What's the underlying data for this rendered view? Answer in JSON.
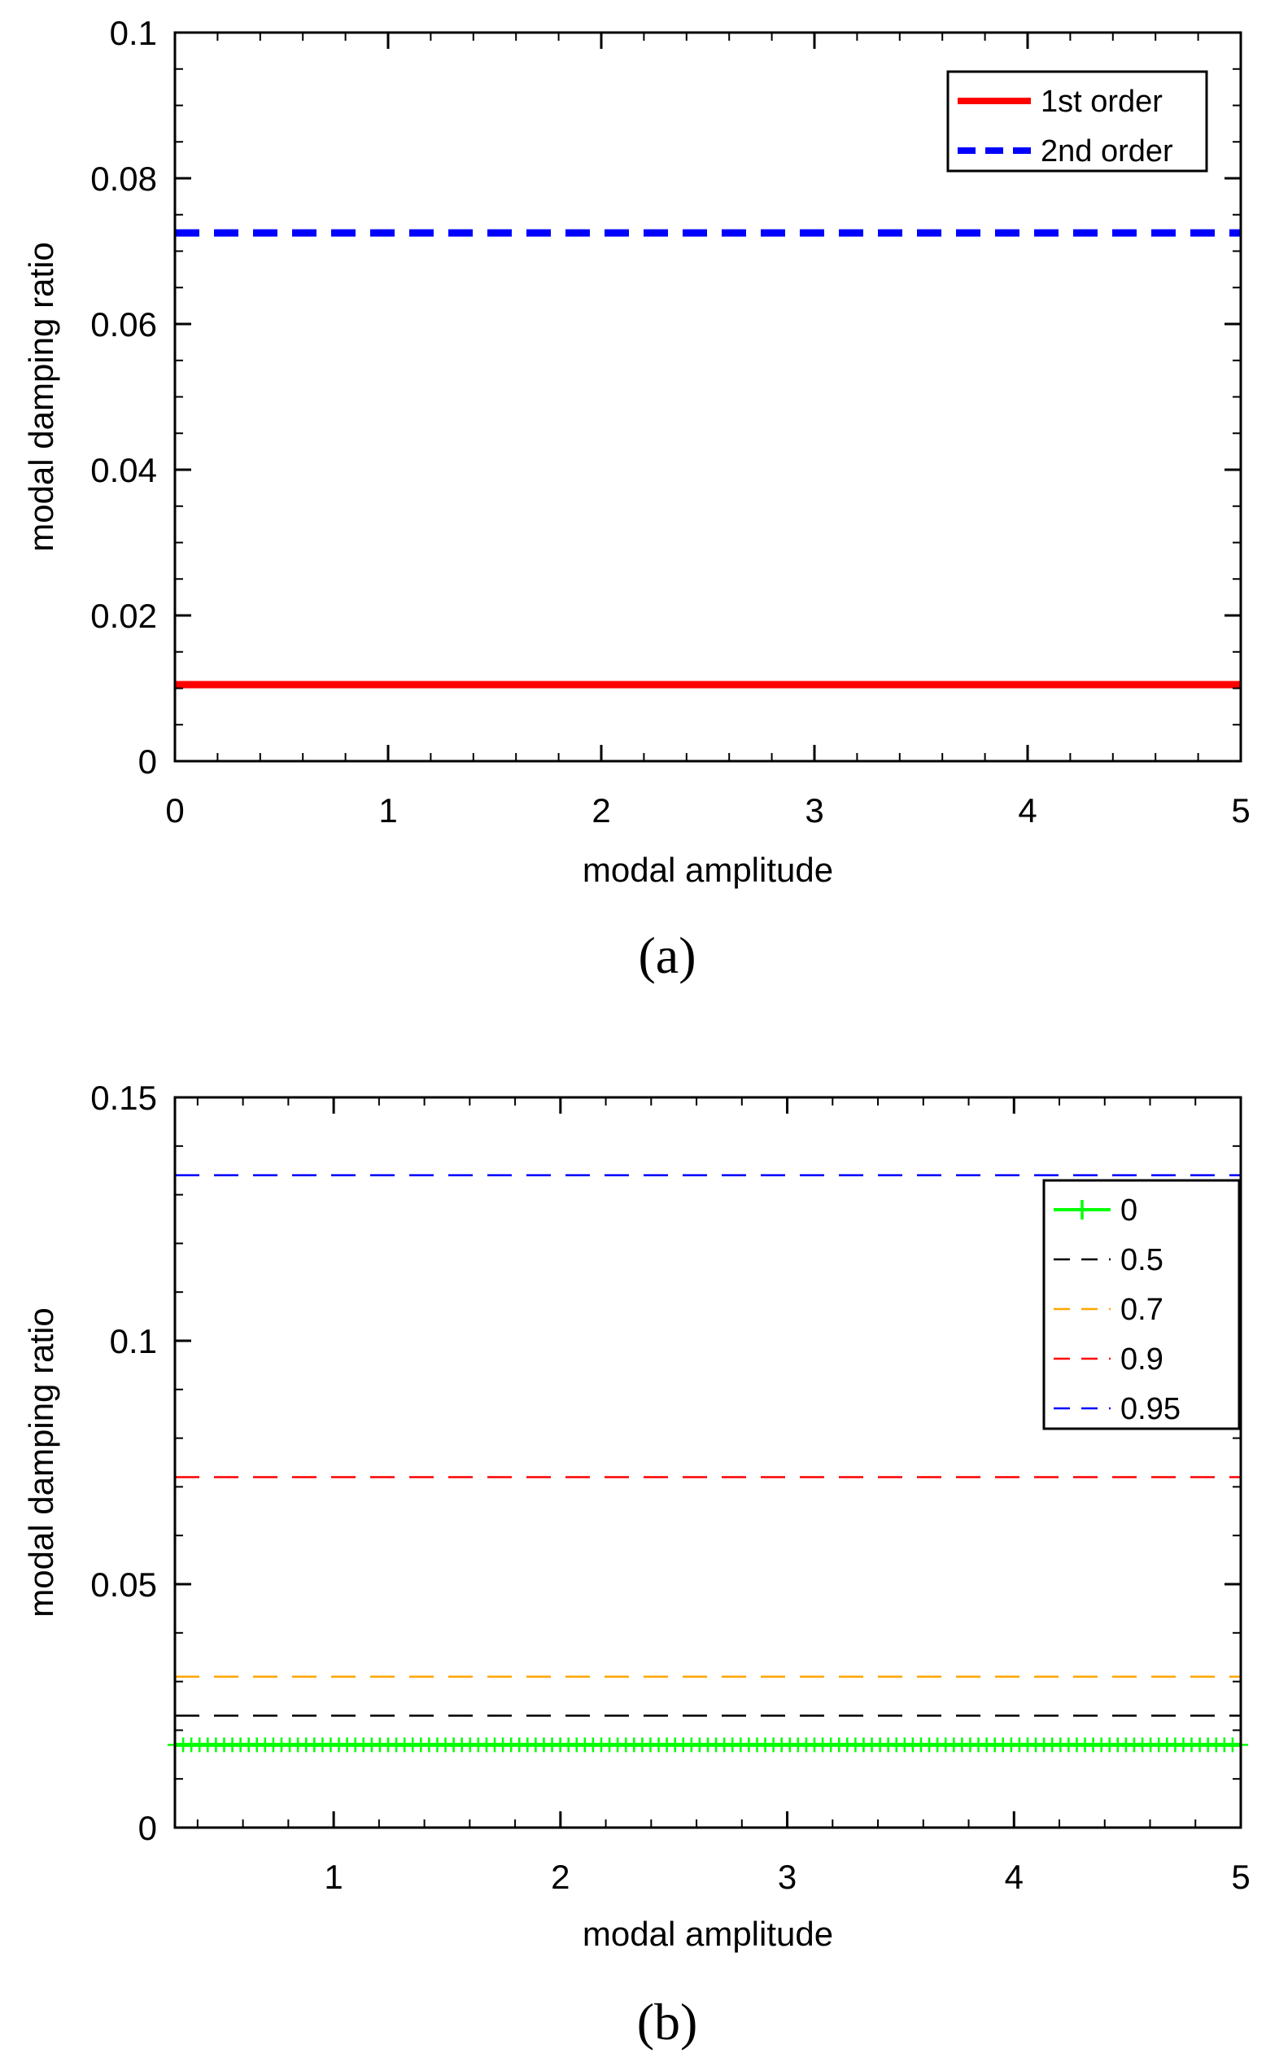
{
  "chart_data": [
    {
      "type": "line",
      "panel_label": "a",
      "panel_label_display": "(a)",
      "title": "",
      "xlabel": "modal amplitude",
      "ylabel": "modal damping ratio",
      "xlim": [
        0,
        5
      ],
      "ylim": [
        0,
        0.1
      ],
      "xticks": [
        0,
        1,
        2,
        3,
        4,
        5
      ],
      "xtick_labels": [
        "0",
        "1",
        "2",
        "3",
        "4",
        "5"
      ],
      "yticks": [
        0,
        0.02,
        0.04,
        0.06,
        0.08,
        0.1
      ],
      "ytick_labels": [
        "0",
        "0.02",
        "0.04",
        "0.06",
        "0.08",
        "0.1"
      ],
      "grid": false,
      "legend_position": "top-right",
      "series": [
        {
          "name": "1st order",
          "label": "1st order",
          "color": "#ff0000",
          "style": "solid",
          "x": [
            0,
            5
          ],
          "values": [
            0.0105,
            0.0105
          ]
        },
        {
          "name": "2nd order",
          "label": "2nd order",
          "color": "#0000ff",
          "style": "dashed",
          "x": [
            0,
            5
          ],
          "values": [
            0.0725,
            0.0725
          ]
        }
      ]
    },
    {
      "type": "line",
      "panel_label": "b",
      "panel_label_display": "(b)",
      "title": "",
      "xlabel": "modal amplitude",
      "ylabel": "modal damping ratio",
      "xlim": [
        0.3,
        5
      ],
      "ylim": [
        0,
        0.15
      ],
      "xticks": [
        1,
        2,
        3,
        4,
        5
      ],
      "xtick_labels": [
        "1",
        "2",
        "3",
        "4",
        "5"
      ],
      "yticks": [
        0,
        0.05,
        0.1,
        0.15
      ],
      "ytick_labels": [
        "0",
        "0.05",
        "0.1",
        "0.15"
      ],
      "grid": false,
      "legend_position": "top-right",
      "series": [
        {
          "name": "0",
          "label": "0",
          "color": "#00ff00",
          "style": "solid-plus-markers",
          "x": [
            0.3,
            5
          ],
          "values": [
            0.017,
            0.017
          ]
        },
        {
          "name": "0.5",
          "label": "0.5",
          "color": "#000000",
          "style": "dashed",
          "x": [
            0.3,
            5
          ],
          "values": [
            0.023,
            0.023
          ]
        },
        {
          "name": "0.7",
          "label": "0.7",
          "color": "#ffa500",
          "style": "dashed",
          "x": [
            0.3,
            5
          ],
          "values": [
            0.031,
            0.031
          ]
        },
        {
          "name": "0.9",
          "label": "0.9",
          "color": "#ff0000",
          "style": "dashed",
          "x": [
            0.3,
            5
          ],
          "values": [
            0.072,
            0.072
          ]
        },
        {
          "name": "0.95",
          "label": "0.95",
          "color": "#0000ff",
          "style": "dashed",
          "x": [
            0.3,
            5
          ],
          "values": [
            0.134,
            0.134
          ]
        }
      ]
    }
  ]
}
